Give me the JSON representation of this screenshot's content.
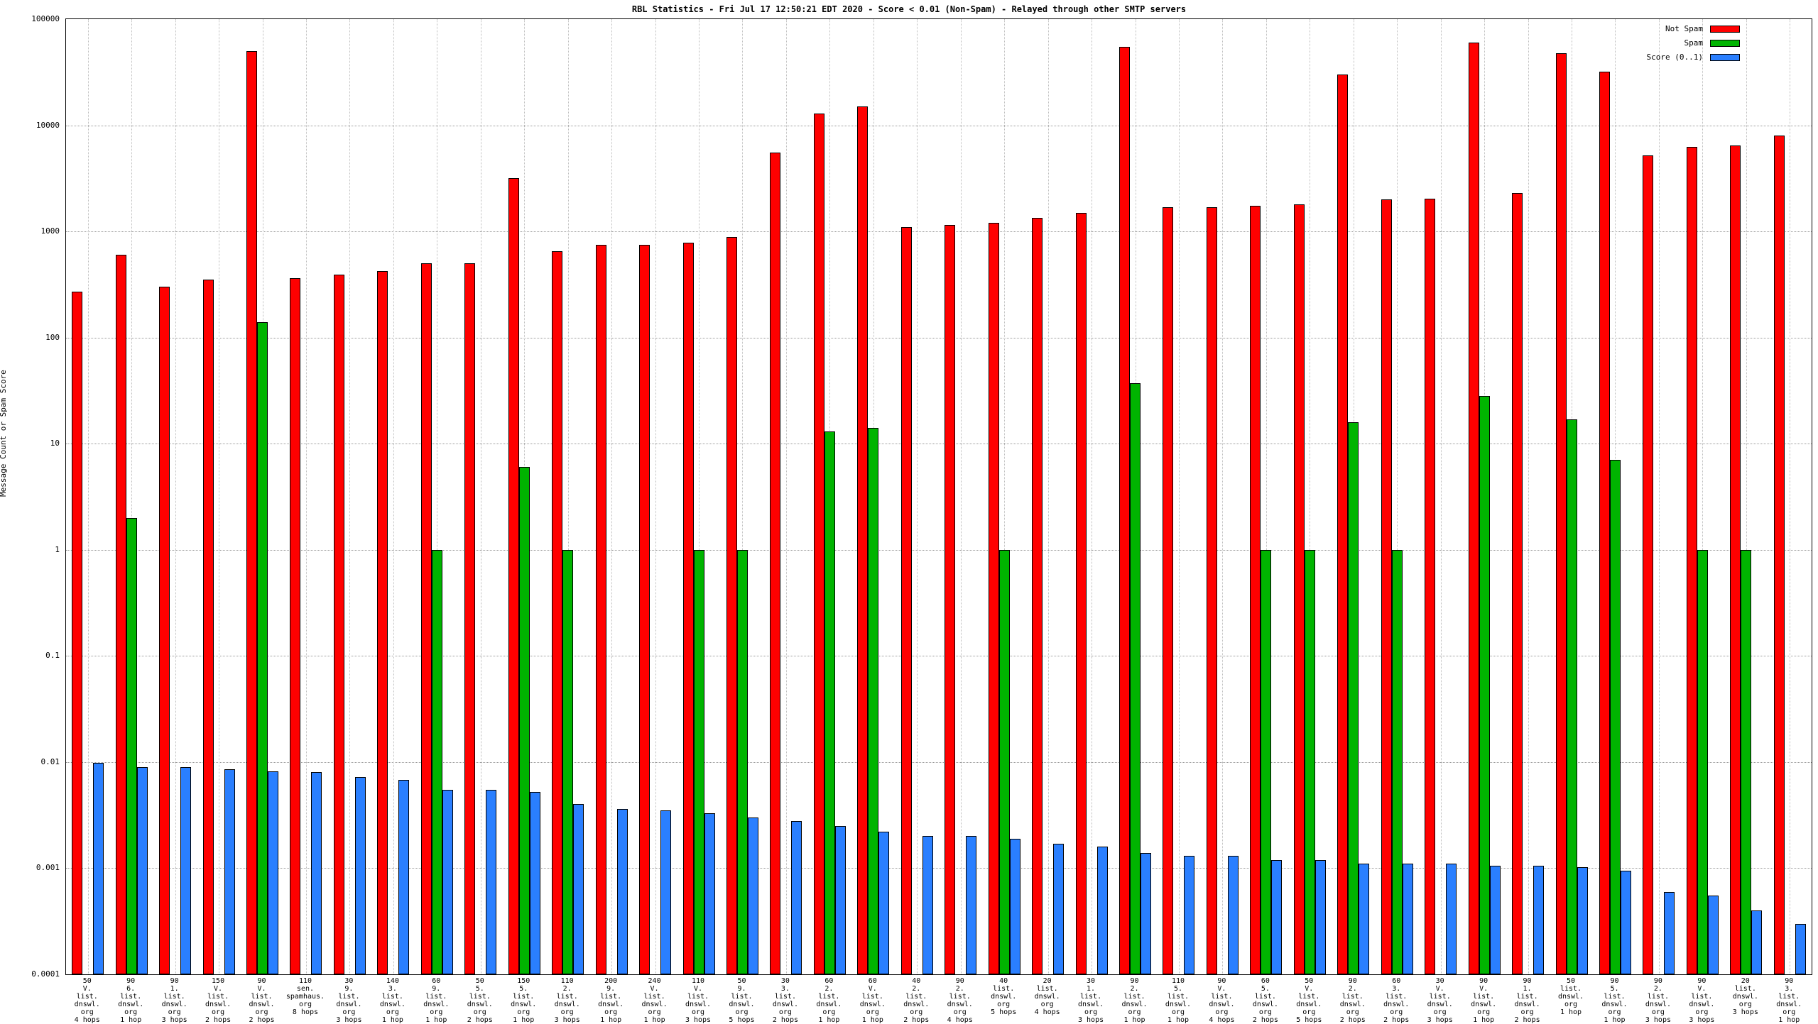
{
  "chart_data": {
    "type": "bar",
    "title": "RBL Statistics - Fri Jul 17 12:50:21 EDT 2020 - Score < 0.01 (Non-Spam) - Relayed through other SMTP servers",
    "ylabel": "Message Count or Spam Score",
    "ylim": [
      0.0001,
      100000
    ],
    "yticks": [
      "100000",
      "10000",
      "1000",
      "100",
      "10",
      "1",
      "0.1",
      "0.01",
      "0.001",
      "0.0001"
    ],
    "grid": true,
    "legend_position": "top-right",
    "legend": [
      {
        "name": "Not Spam",
        "color": "#ff0000"
      },
      {
        "name": "Spam",
        "color": "#00b400"
      },
      {
        "name": "Score (0..1)",
        "color": "#2a7fff"
      }
    ],
    "series_names": [
      "not_spam",
      "spam",
      "score"
    ],
    "groups": [
      {
        "label": "50\nV.\nlist.\ndnswl.\norg\n4 hops",
        "not_spam": 270,
        "spam": null,
        "score": 0.0098
      },
      {
        "label": "90\n6.\nlist.\ndnswl.\norg\n1 hop",
        "not_spam": 600,
        "spam": 2,
        "score": 0.009
      },
      {
        "label": "90\n1.\nlist.\ndnswl.\norg\n3 hops",
        "not_spam": 300,
        "spam": null,
        "score": 0.009
      },
      {
        "label": "150\nV.\nlist.\ndnswl.\norg\n2 hops",
        "not_spam": 350,
        "spam": null,
        "score": 0.0085
      },
      {
        "label": "90\nV.\nlist.\ndnswl.\norg\n2 hops",
        "not_spam": 50000,
        "spam": 140,
        "score": 0.0082
      },
      {
        "label": "110\nsen.\nspamhaus.\norg\n8 hops",
        "not_spam": 360,
        "spam": null,
        "score": 0.008
      },
      {
        "label": "30\n9.\nlist.\ndnswl.\norg\n3 hops",
        "not_spam": 390,
        "spam": null,
        "score": 0.0072
      },
      {
        "label": "140\n3.\nlist.\ndnswl.\norg\n1 hop",
        "not_spam": 420,
        "spam": null,
        "score": 0.0068
      },
      {
        "label": "60\n9.\nlist.\ndnswl.\norg\n1 hop",
        "not_spam": 500,
        "spam": 1,
        "score": 0.0055
      },
      {
        "label": "50\n5.\nlist.\ndnswl.\norg\n2 hops",
        "not_spam": 500,
        "spam": null,
        "score": 0.0055
      },
      {
        "label": "150\n5.\nlist.\ndnswl.\norg\n1 hop",
        "not_spam": 3200,
        "spam": 6,
        "score": 0.0052
      },
      {
        "label": "110\n2.\nlist.\ndnswl.\norg\n3 hops",
        "not_spam": 650,
        "spam": 1,
        "score": 0.004
      },
      {
        "label": "200\n9.\nlist.\ndnswl.\norg\n1 hop",
        "not_spam": 750,
        "spam": null,
        "score": 0.0036
      },
      {
        "label": "240\nV.\nlist.\ndnswl.\norg\n1 hop",
        "not_spam": 750,
        "spam": null,
        "score": 0.0035
      },
      {
        "label": "110\nV.\nlist.\ndnswl.\norg\n3 hops",
        "not_spam": 780,
        "spam": 1,
        "score": 0.0033
      },
      {
        "label": "50\n9.\nlist.\ndnswl.\norg\n5 hops",
        "not_spam": 880,
        "spam": 1,
        "score": 0.003
      },
      {
        "label": "30\n3.\nlist.\ndnswl.\norg\n2 hops",
        "not_spam": 5500,
        "spam": null,
        "score": 0.0028
      },
      {
        "label": "60\n2.\nlist.\ndnswl.\norg\n1 hop",
        "not_spam": 13000,
        "spam": 13,
        "score": 0.0025
      },
      {
        "label": "60\nV.\nlist.\ndnswl.\norg\n1 hop",
        "not_spam": 15000,
        "spam": 14,
        "score": 0.0022
      },
      {
        "label": "40\n2.\nlist.\ndnswl.\norg\n2 hops",
        "not_spam": 1100,
        "spam": null,
        "score": 0.002
      },
      {
        "label": "90\n2.\nlist.\ndnswl.\norg\n4 hops",
        "not_spam": 1150,
        "spam": null,
        "score": 0.002
      },
      {
        "label": "40\nlist.\ndnswl.\norg\n5 hops",
        "not_spam": 1200,
        "spam": 1,
        "score": 0.0019
      },
      {
        "label": "20\nlist.\ndnswl.\norg\n4 hops",
        "not_spam": 1350,
        "spam": null,
        "score": 0.0017
      },
      {
        "label": "30\n1.\nlist.\ndnswl.\norg\n3 hops",
        "not_spam": 1500,
        "spam": null,
        "score": 0.0016
      },
      {
        "label": "90\n2.\nlist.\ndnswl.\norg\n1 hop",
        "not_spam": 55000,
        "spam": 37,
        "score": 0.0014
      },
      {
        "label": "110\n5.\nlist.\ndnswl.\norg\n1 hop",
        "not_spam": 1700,
        "spam": null,
        "score": 0.0013
      },
      {
        "label": "90\nV.\nlist.\ndnswl.\norg\n4 hops",
        "not_spam": 1700,
        "spam": null,
        "score": 0.0013
      },
      {
        "label": "60\n5.\nlist.\ndnswl.\norg\n2 hops",
        "not_spam": 1750,
        "spam": 1,
        "score": 0.0012
      },
      {
        "label": "50\nV.\nlist.\ndnswl.\norg\n5 hops",
        "not_spam": 1800,
        "spam": 1,
        "score": 0.0012
      },
      {
        "label": "90\n2.\nlist.\ndnswl.\norg\n2 hops",
        "not_spam": 30000,
        "spam": 16,
        "score": 0.0011
      },
      {
        "label": "60\n3.\nlist.\ndnswl.\norg\n2 hops",
        "not_spam": 2000,
        "spam": 1,
        "score": 0.0011
      },
      {
        "label": "30\nV.\nlist.\ndnswl.\norg\n3 hops",
        "not_spam": 2050,
        "spam": null,
        "score": 0.0011
      },
      {
        "label": "90\nV.\nlist.\ndnswl.\norg\n1 hop",
        "not_spam": 60000,
        "spam": 28,
        "score": 0.00105
      },
      {
        "label": "90\n1.\nlist.\ndnswl.\norg\n2 hops",
        "not_spam": 2300,
        "spam": null,
        "score": 0.00105
      },
      {
        "label": "50\nlist.\ndnswl.\norg\n1 hop",
        "not_spam": 48000,
        "spam": 17,
        "score": 0.00102
      },
      {
        "label": "90\n5.\nlist.\ndnswl.\norg\n1 hop",
        "not_spam": 32000,
        "spam": 7,
        "score": 0.00095
      },
      {
        "label": "90\n2.\nlist.\ndnswl.\norg\n3 hops",
        "not_spam": 5200,
        "spam": null,
        "score": 0.0006
      },
      {
        "label": "90\nV.\nlist.\ndnswl.\norg\n3 hops",
        "not_spam": 6300,
        "spam": 1,
        "score": 0.00055
      },
      {
        "label": "20\nlist.\ndnswl.\norg\n3 hops",
        "not_spam": 6500,
        "spam": 1,
        "score": 0.0004
      },
      {
        "label": "90\n3.\nlist.\ndnswl.\norg\n1 hop",
        "not_spam": 8000,
        "spam": null,
        "score": 0.0003
      }
    ]
  }
}
